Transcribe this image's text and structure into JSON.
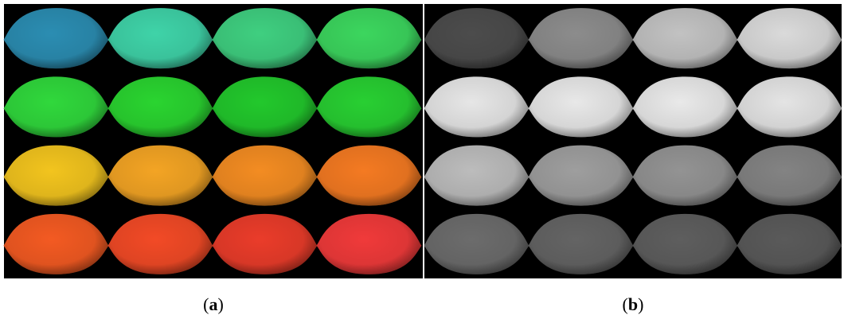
{
  "captions": [
    {
      "open": "(",
      "letter": "a",
      "close": ")"
    },
    {
      "open": "(",
      "letter": "b",
      "close": ")"
    }
  ]
}
